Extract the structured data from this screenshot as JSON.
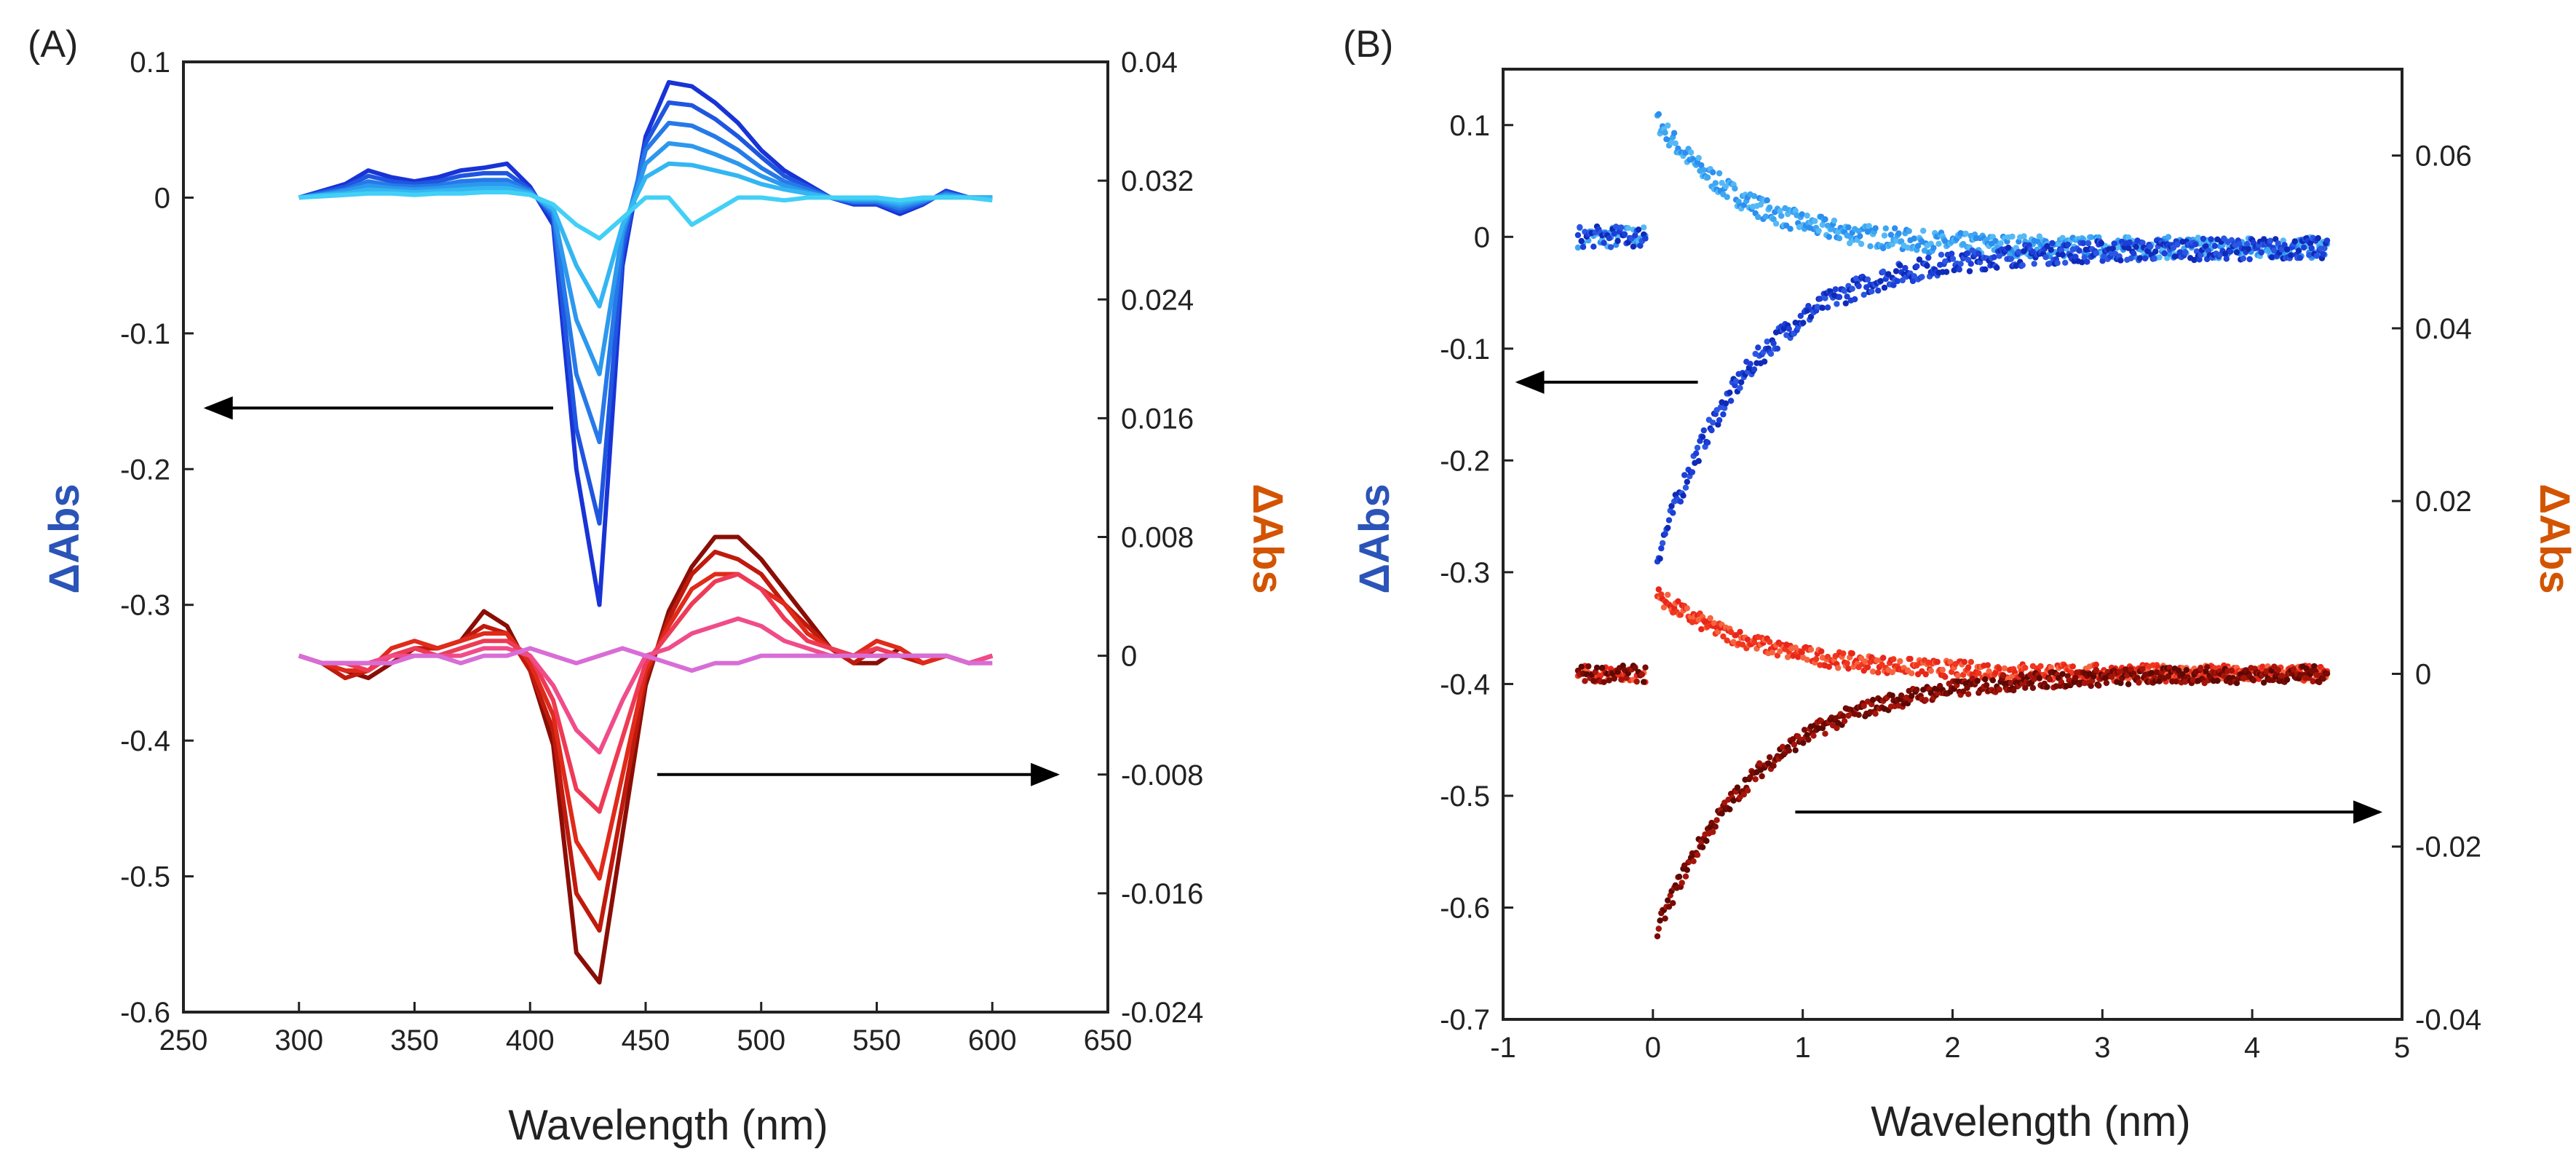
{
  "colors": {
    "left_axis_label": "#2b54b8",
    "right_axis_label": "#d35400",
    "blue_series": [
      "#1833d6",
      "#1f56e0",
      "#2679e8",
      "#2c98ee",
      "#33b6f2",
      "#43d0f6"
    ],
    "red_series": [
      "#8a0e06",
      "#c01a0d",
      "#e02a1a",
      "#ee3a55",
      "#f04c8a",
      "#d86dd6"
    ]
  },
  "chart_data": [
    {
      "panel_label": "(A)",
      "type": "line",
      "xlabel": "Wavelength (nm)",
      "xlim": [
        250,
        650
      ],
      "x_ticks": [
        "250",
        "300",
        "350",
        "400",
        "450",
        "500",
        "550",
        "600",
        "650"
      ],
      "ylabel_left": "ΔAbs",
      "ylim_left": [
        -0.6,
        0.1
      ],
      "y_ticks_left": [
        "0.1",
        "0",
        "-0.1",
        "-0.2",
        "-0.3",
        "-0.4",
        "-0.5",
        "-0.6"
      ],
      "ylabel_right": "ΔAbs",
      "ylim_right": [
        -0.024,
        0.04
      ],
      "y_ticks_right": [
        "0.04",
        "0.032",
        "0.024",
        "0.016",
        "0.008",
        "0",
        "-0.008",
        "-0.016",
        "-0.024"
      ],
      "x": [
        300,
        310,
        320,
        330,
        340,
        350,
        360,
        370,
        380,
        390,
        400,
        410,
        420,
        430,
        440,
        450,
        460,
        470,
        480,
        490,
        500,
        510,
        520,
        530,
        540,
        550,
        560,
        570,
        580,
        590,
        600
      ],
      "series_left": [
        {
          "name": "blue 1",
          "values": [
            0.0,
            0.005,
            0.01,
            0.02,
            0.015,
            0.012,
            0.015,
            0.02,
            0.022,
            0.025,
            0.008,
            -0.02,
            -0.2,
            -0.3,
            -0.05,
            0.045,
            0.085,
            0.082,
            0.07,
            0.055,
            0.035,
            0.02,
            0.01,
            0.0,
            -0.005,
            -0.005,
            -0.012,
            -0.005,
            0.005,
            0.0,
            0.0
          ]
        },
        {
          "name": "blue 2",
          "values": [
            0.0,
            0.004,
            0.008,
            0.016,
            0.012,
            0.01,
            0.012,
            0.016,
            0.018,
            0.018,
            0.006,
            -0.015,
            -0.17,
            -0.24,
            -0.04,
            0.04,
            0.07,
            0.068,
            0.058,
            0.045,
            0.03,
            0.016,
            0.008,
            0.0,
            -0.004,
            -0.004,
            -0.01,
            -0.004,
            0.004,
            0.0,
            0.0
          ]
        },
        {
          "name": "blue 3",
          "values": [
            0.0,
            0.003,
            0.006,
            0.012,
            0.009,
            0.008,
            0.009,
            0.012,
            0.013,
            0.013,
            0.005,
            -0.012,
            -0.13,
            -0.18,
            -0.03,
            0.035,
            0.055,
            0.053,
            0.045,
            0.035,
            0.022,
            0.012,
            0.006,
            0.0,
            -0.003,
            -0.003,
            -0.008,
            -0.003,
            0.003,
            0.0,
            0.0
          ]
        },
        {
          "name": "blue 4",
          "values": [
            0.0,
            0.002,
            0.005,
            0.009,
            0.007,
            0.006,
            0.007,
            0.009,
            0.01,
            0.01,
            0.004,
            -0.01,
            -0.09,
            -0.13,
            -0.025,
            0.025,
            0.04,
            0.038,
            0.032,
            0.025,
            0.016,
            0.009,
            0.004,
            0.0,
            -0.002,
            -0.002,
            -0.006,
            -0.002,
            0.002,
            0.0,
            0.0
          ]
        },
        {
          "name": "blue 5",
          "values": [
            0.0,
            0.002,
            0.003,
            0.006,
            0.005,
            0.004,
            0.005,
            0.006,
            0.007,
            0.007,
            0.003,
            -0.008,
            -0.05,
            -0.08,
            -0.02,
            0.015,
            0.025,
            0.024,
            0.02,
            0.016,
            0.01,
            0.006,
            0.003,
            0.0,
            -0.001,
            -0.001,
            -0.004,
            -0.001,
            0.001,
            0.0,
            0.0
          ]
        },
        {
          "name": "blue 6",
          "values": [
            0.0,
            0.001,
            0.002,
            0.003,
            0.003,
            0.002,
            0.003,
            0.003,
            0.004,
            0.004,
            0.002,
            -0.005,
            -0.02,
            -0.03,
            -0.015,
            0.0,
            0.0,
            -0.02,
            -0.01,
            0.0,
            0.0,
            -0.002,
            0.0,
            0.0,
            0.0,
            0.0,
            -0.002,
            0.0,
            0.0,
            0.0,
            -0.002
          ]
        }
      ],
      "series_right": [
        {
          "name": "red 1",
          "values": [
            0.0,
            -0.0005,
            -0.001,
            -0.0015,
            -0.0005,
            0.0005,
            0.0005,
            0.001,
            0.003,
            0.002,
            -0.001,
            -0.006,
            -0.02,
            -0.022,
            -0.012,
            -0.002,
            0.003,
            0.006,
            0.008,
            0.008,
            0.0065,
            0.0045,
            0.0025,
            0.0005,
            -0.0005,
            -0.0005,
            0.0005,
            -0.0005,
            0.0,
            -0.0005,
            0.0
          ]
        },
        {
          "name": "red 2",
          "values": [
            0.0,
            -0.0005,
            -0.0015,
            -0.001,
            0.0,
            0.0005,
            0.0005,
            0.001,
            0.002,
            0.0015,
            -0.001,
            -0.005,
            -0.016,
            -0.0185,
            -0.01,
            -0.0015,
            0.0025,
            0.0055,
            0.007,
            0.0065,
            0.0055,
            0.0035,
            0.002,
            0.0005,
            -0.0005,
            0.0005,
            0.0,
            -0.0005,
            0.0,
            -0.0005,
            0.0
          ]
        },
        {
          "name": "red 3",
          "values": [
            0.0,
            -0.0005,
            -0.001,
            -0.001,
            0.0005,
            0.001,
            0.0005,
            0.001,
            0.0015,
            0.0015,
            -0.0005,
            -0.004,
            -0.0125,
            -0.015,
            -0.008,
            -0.001,
            0.002,
            0.0045,
            0.0055,
            0.0055,
            0.0045,
            0.0035,
            0.0015,
            0.0005,
            0.0,
            0.001,
            0.0005,
            -0.0005,
            0.0,
            -0.0005,
            0.0
          ]
        },
        {
          "name": "red 4",
          "values": [
            0.0,
            -0.0005,
            -0.0005,
            -0.001,
            0.0,
            0.0005,
            0.0,
            0.0005,
            0.001,
            0.001,
            0.0,
            -0.003,
            -0.009,
            -0.0105,
            -0.0055,
            -0.0005,
            0.0015,
            0.0035,
            0.005,
            0.0055,
            0.0045,
            0.0025,
            0.001,
            0.0005,
            0.0,
            0.0005,
            0.0,
            0.0,
            0.0,
            -0.0005,
            0.0
          ]
        },
        {
          "name": "red 5",
          "values": [
            0.0,
            -0.0005,
            -0.0005,
            -0.0005,
            0.0,
            0.0,
            0.0,
            0.0,
            0.0005,
            0.0005,
            0.0,
            -0.002,
            -0.005,
            -0.0065,
            -0.003,
            0.0,
            0.0005,
            0.0015,
            0.002,
            0.0025,
            0.002,
            0.001,
            0.0005,
            0.0,
            0.0,
            0.0,
            0.0,
            0.0,
            0.0,
            -0.0005,
            0.0
          ]
        },
        {
          "name": "red 6",
          "values": [
            0.0,
            -0.0005,
            -0.0005,
            -0.0005,
            -0.0005,
            0.0,
            0.0,
            -0.0005,
            0.0,
            0.0,
            0.0005,
            0.0,
            -0.0005,
            0.0,
            0.0005,
            0.0,
            -0.0005,
            -0.001,
            -0.0005,
            -0.0005,
            0.0,
            0.0,
            0.0,
            0.0,
            0.0,
            0.0,
            0.0,
            0.0,
            0.0,
            -0.0005,
            -0.0005
          ]
        }
      ],
      "annotations": [
        {
          "type": "arrow",
          "points_to": "left axis",
          "at_y_left": -0.155,
          "x_from": 410,
          "x_to": 260
        },
        {
          "type": "arrow",
          "points_to": "right axis",
          "at_y_right": -0.008,
          "x_from": 455,
          "x_to": 628
        }
      ]
    },
    {
      "panel_label": "(B)",
      "type": "scatter",
      "xlabel": "Wavelength (nm)",
      "xlim": [
        -1,
        5
      ],
      "x_ticks": [
        "-1",
        "0",
        "1",
        "2",
        "3",
        "4",
        "5"
      ],
      "ylabel_left": "ΔAbs",
      "ylim_left": [
        -0.7,
        0.15
      ],
      "y_ticks_left": [
        "0.1",
        "0",
        "-0.1",
        "-0.2",
        "-0.3",
        "-0.4",
        "-0.5",
        "-0.6",
        "-0.7"
      ],
      "ylabel_right": "ΔAbs",
      "ylim_right": [
        -0.04,
        0.07
      ],
      "y_ticks_right": [
        "0.06",
        "0.04",
        "0.02",
        "0",
        "-0.02",
        "-0.04"
      ],
      "series": [
        {
          "name": "light blue decay",
          "axis": "left",
          "pre": [
            -0.5,
            -0.05,
            0.0
          ],
          "amplitude": 0.11,
          "tau": 0.6,
          "offset": -0.01
        },
        {
          "name": "dark blue rise",
          "axis": "left",
          "pre": [
            -0.5,
            -0.05,
            0.0
          ],
          "amplitude": -0.3,
          "tau": 0.65,
          "offset": -0.01
        },
        {
          "name": "red decay",
          "axis": "right",
          "pre": [
            -0.5,
            -0.05,
            0.0
          ],
          "amplitude": 0.0095,
          "tau": 0.7,
          "offset": 0.0
        },
        {
          "name": "dark red rise",
          "axis": "right",
          "pre": [
            -0.5,
            -0.05,
            0.0
          ],
          "amplitude": -0.031,
          "tau": 0.7,
          "offset": 0.0
        }
      ],
      "annotations": [
        {
          "type": "arrow",
          "points_to": "left axis",
          "at_y_left": -0.13,
          "x_from": 0.3,
          "x_to": -0.9
        },
        {
          "type": "arrow",
          "points_to": "right axis",
          "at_y_right": -0.016,
          "x_from": 0.95,
          "x_to": 4.85
        }
      ]
    }
  ]
}
